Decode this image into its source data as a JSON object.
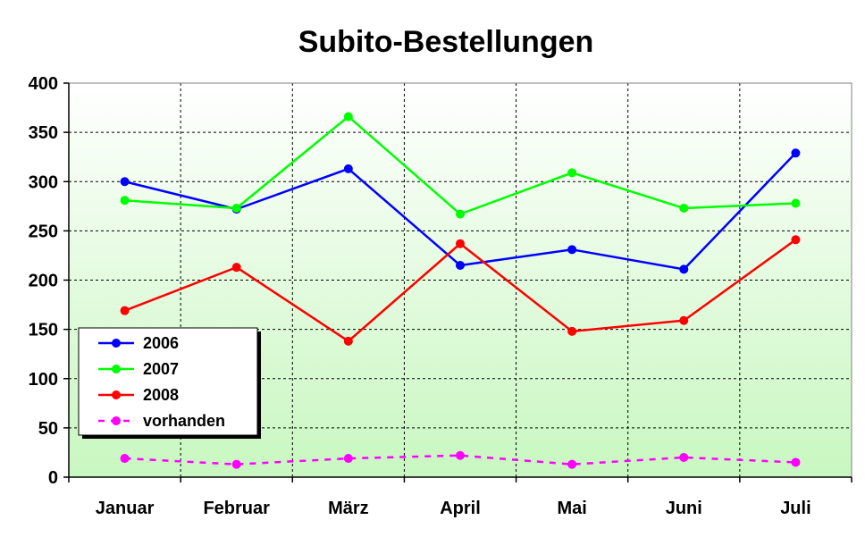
{
  "chart_data": {
    "type": "line",
    "title": "Subito-Bestellungen",
    "xlabel": "",
    "ylabel": "",
    "categories": [
      "Januar",
      "Februar",
      "März",
      "April",
      "Mai",
      "Juni",
      "Juli"
    ],
    "ylim": [
      0,
      400
    ],
    "yticks": [
      0,
      50,
      100,
      150,
      200,
      250,
      300,
      350,
      400
    ],
    "grid": true,
    "legend_position": "bottom-left",
    "series": [
      {
        "name": "2006",
        "values": [
          300,
          272,
          313,
          215,
          231,
          211,
          329
        ],
        "color": "#0000ff",
        "style": "solid"
      },
      {
        "name": "2007",
        "values": [
          281,
          273,
          366,
          267,
          309,
          273,
          278
        ],
        "color": "#00ff00",
        "style": "solid"
      },
      {
        "name": "2008",
        "values": [
          169,
          213,
          138,
          237,
          148,
          159,
          241
        ],
        "color": "#ff0000",
        "style": "solid"
      },
      {
        "name": "vorhanden",
        "values": [
          19,
          13,
          19,
          22,
          13,
          20,
          15
        ],
        "color": "#ff00ff",
        "style": "dashed"
      }
    ],
    "plot_background": [
      "#ffffff",
      "#c8f7c0"
    ]
  }
}
